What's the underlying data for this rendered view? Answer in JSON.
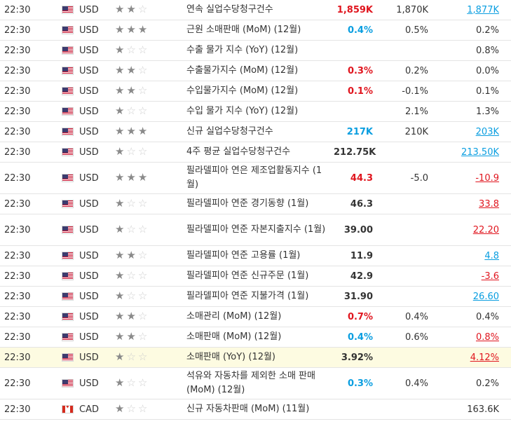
{
  "events": [
    {
      "time": "22:30",
      "currency": "USD",
      "flag": "us",
      "stars": 2,
      "event": "연속 실업수당청구건수",
      "actual": "1,859K",
      "actual_tone": "down",
      "forecast": "1,870K",
      "previous": "1,877K",
      "previous_tone": "ul-up",
      "tall": false,
      "highlight": false
    },
    {
      "time": "22:30",
      "currency": "USD",
      "flag": "us",
      "stars": 3,
      "event": "근원 소매판매 (MoM) (12월)",
      "actual": "0.4%",
      "actual_tone": "up",
      "forecast": "0.5%",
      "previous": "0.2%",
      "previous_tone": "neutral",
      "tall": false,
      "highlight": false
    },
    {
      "time": "22:30",
      "currency": "USD",
      "flag": "us",
      "stars": 1,
      "event": "수출 물가 지수 (YoY) (12월)",
      "actual": "",
      "actual_tone": "neutral",
      "forecast": "",
      "previous": "0.8%",
      "previous_tone": "neutral",
      "tall": false,
      "highlight": false
    },
    {
      "time": "22:30",
      "currency": "USD",
      "flag": "us",
      "stars": 2,
      "event": "수출물가지수 (MoM) (12월)",
      "actual": "0.3%",
      "actual_tone": "down",
      "forecast": "0.2%",
      "previous": "0.0%",
      "previous_tone": "neutral",
      "tall": false,
      "highlight": false
    },
    {
      "time": "22:30",
      "currency": "USD",
      "flag": "us",
      "stars": 2,
      "event": "수입물가지수 (MoM) (12월)",
      "actual": "0.1%",
      "actual_tone": "down",
      "forecast": "-0.1%",
      "previous": "0.1%",
      "previous_tone": "neutral",
      "tall": false,
      "highlight": false
    },
    {
      "time": "22:30",
      "currency": "USD",
      "flag": "us",
      "stars": 1,
      "event": "수입 물가 지수 (YoY) (12월)",
      "actual": "",
      "actual_tone": "neutral",
      "forecast": "2.1%",
      "previous": "1.3%",
      "previous_tone": "neutral",
      "tall": false,
      "highlight": false
    },
    {
      "time": "22:30",
      "currency": "USD",
      "flag": "us",
      "stars": 3,
      "event": "신규 실업수당청구건수",
      "actual": "217K",
      "actual_tone": "up",
      "forecast": "210K",
      "previous": "203K",
      "previous_tone": "ul-up",
      "tall": false,
      "highlight": false
    },
    {
      "time": "22:30",
      "currency": "USD",
      "flag": "us",
      "stars": 1,
      "event": "4주 평균 실업수당청구건수",
      "actual": "212.75K",
      "actual_tone": "neutral",
      "forecast": "",
      "previous": "213.50K",
      "previous_tone": "ul-up",
      "tall": false,
      "highlight": false
    },
    {
      "time": "22:30",
      "currency": "USD",
      "flag": "us",
      "stars": 3,
      "event": "필라델피아 연은 제조업활동지수 (1월)",
      "actual": "44.3",
      "actual_tone": "down",
      "forecast": "-5.0",
      "previous": "-10.9",
      "previous_tone": "ul-down",
      "tall": true,
      "highlight": false
    },
    {
      "time": "22:30",
      "currency": "USD",
      "flag": "us",
      "stars": 1,
      "event": "필라델피아 연준 경기동향 (1월)",
      "actual": "46.3",
      "actual_tone": "neutral",
      "forecast": "",
      "previous": "33.8",
      "previous_tone": "ul-down",
      "tall": false,
      "highlight": false
    },
    {
      "time": "22:30",
      "currency": "USD",
      "flag": "us",
      "stars": 1,
      "event": "필라델피아 연준 자본지출지수 (1월)",
      "actual": "39.00",
      "actual_tone": "neutral",
      "forecast": "",
      "previous": "22.20",
      "previous_tone": "ul-down",
      "tall": true,
      "highlight": false
    },
    {
      "time": "22:30",
      "currency": "USD",
      "flag": "us",
      "stars": 2,
      "event": "필라델피아 연준 고용률 (1월)",
      "actual": "11.9",
      "actual_tone": "neutral",
      "forecast": "",
      "previous": "4.8",
      "previous_tone": "ul-up",
      "tall": false,
      "highlight": false
    },
    {
      "time": "22:30",
      "currency": "USD",
      "flag": "us",
      "stars": 1,
      "event": "필라델피아 연준 신규주문 (1월)",
      "actual": "42.9",
      "actual_tone": "neutral",
      "forecast": "",
      "previous": "-3.6",
      "previous_tone": "ul-down",
      "tall": false,
      "highlight": false
    },
    {
      "time": "22:30",
      "currency": "USD",
      "flag": "us",
      "stars": 1,
      "event": "필라델피아 연준 지불가격 (1월)",
      "actual": "31.90",
      "actual_tone": "neutral",
      "forecast": "",
      "previous": "26.60",
      "previous_tone": "ul-up",
      "tall": false,
      "highlight": false
    },
    {
      "time": "22:30",
      "currency": "USD",
      "flag": "us",
      "stars": 2,
      "event": "소매관리 (MoM) (12월)",
      "actual": "0.7%",
      "actual_tone": "down",
      "forecast": "0.4%",
      "previous": "0.4%",
      "previous_tone": "neutral",
      "tall": false,
      "highlight": false
    },
    {
      "time": "22:30",
      "currency": "USD",
      "flag": "us",
      "stars": 2,
      "event": "소매판매 (MoM) (12월)",
      "actual": "0.4%",
      "actual_tone": "up",
      "forecast": "0.6%",
      "previous": "0.8%",
      "previous_tone": "ul-down",
      "tall": false,
      "highlight": false
    },
    {
      "time": "22:30",
      "currency": "USD",
      "flag": "us",
      "stars": 1,
      "event": "소매판매 (YoY) (12월)",
      "actual": "3.92%",
      "actual_tone": "neutral",
      "forecast": "",
      "previous": "4.12%",
      "previous_tone": "ul-down",
      "tall": false,
      "highlight": true
    },
    {
      "time": "22:30",
      "currency": "USD",
      "flag": "us",
      "stars": 1,
      "event": "석유와 자동차를 제외한 소매 판매 (MoM) (12월)",
      "actual": "0.3%",
      "actual_tone": "up",
      "forecast": "0.4%",
      "previous": "0.2%",
      "previous_tone": "neutral",
      "tall": true,
      "highlight": false
    },
    {
      "time": "22:30",
      "currency": "CAD",
      "flag": "ca",
      "stars": 1,
      "event": "신규 자동차판매 (MoM) (11월)",
      "actual": "",
      "actual_tone": "neutral",
      "forecast": "",
      "previous": "163.6K",
      "previous_tone": "neutral",
      "tall": false,
      "highlight": false
    }
  ]
}
